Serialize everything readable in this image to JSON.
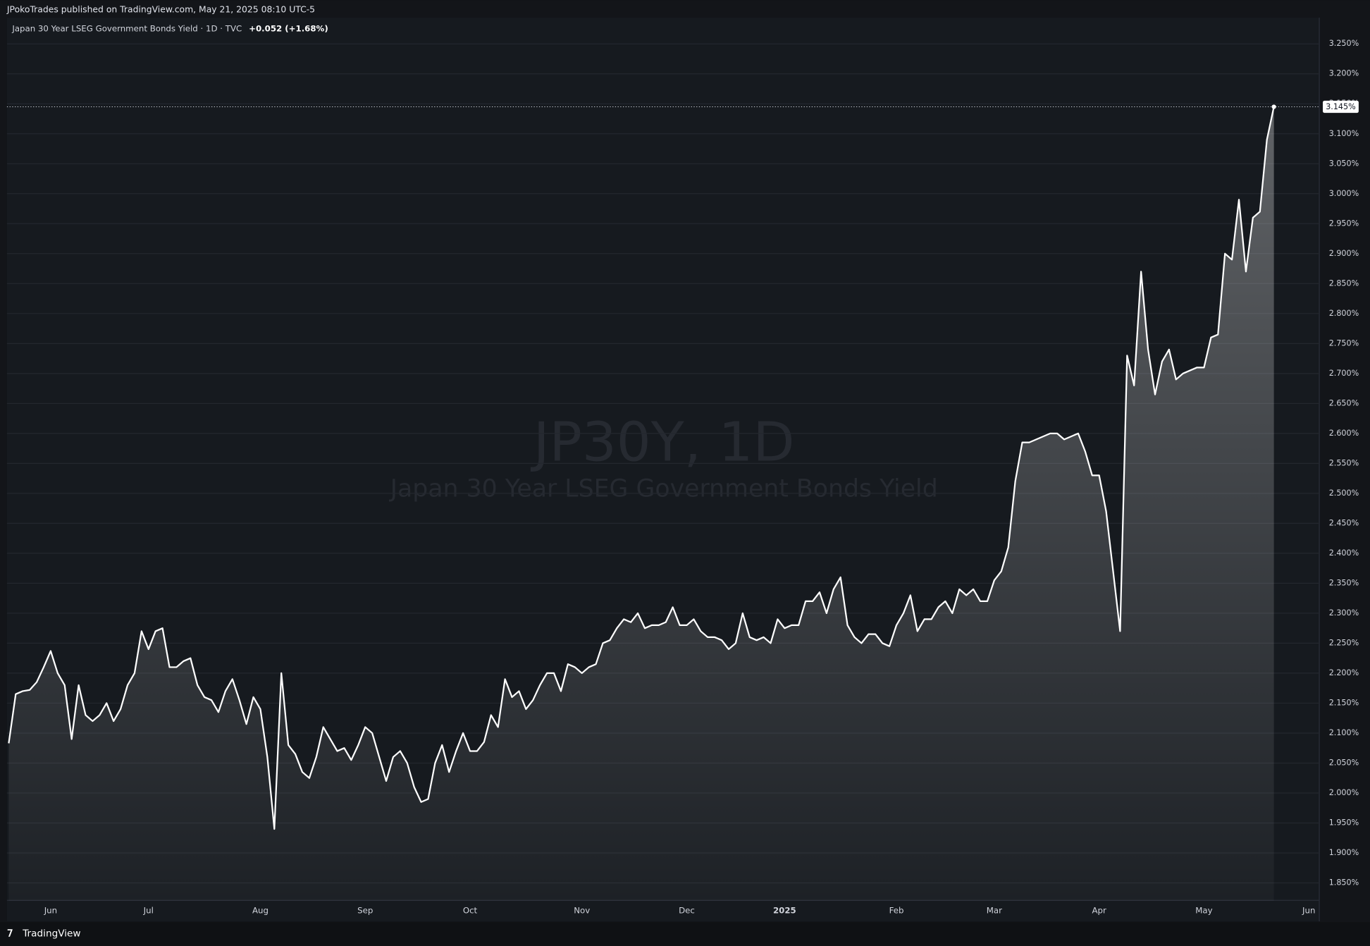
{
  "header": "JPokoTrades published on TradingView.com, May 21, 2025 08:10 UTC-5",
  "footer": "TradingView",
  "chart_data": {
    "type": "area",
    "legend_title": "Japan 30 Year LSEG Government Bonds Yield · 1D · TVC",
    "change": "+0.052 (+1.68%)",
    "watermark_symbol": "JP30Y, 1D",
    "watermark_name": "Japan 30 Year LSEG Government Bonds Yield",
    "last_price_label": {
      "value": 3.145,
      "label": "3.145%"
    },
    "grid": true,
    "ylim": [
      1.82,
      3.294
    ],
    "yticks": [
      {
        "value": 1.85,
        "label": "1.850%"
      },
      {
        "value": 1.9,
        "label": "1.900%"
      },
      {
        "value": 1.95,
        "label": "1.950%"
      },
      {
        "value": 2.0,
        "label": "2.000%"
      },
      {
        "value": 2.05,
        "label": "2.050%"
      },
      {
        "value": 2.1,
        "label": "2.100%"
      },
      {
        "value": 2.15,
        "label": "2.150%"
      },
      {
        "value": 2.2,
        "label": "2.200%"
      },
      {
        "value": 2.25,
        "label": "2.250%"
      },
      {
        "value": 2.3,
        "label": "2.300%"
      },
      {
        "value": 2.35,
        "label": "2.350%"
      },
      {
        "value": 2.4,
        "label": "2.400%"
      },
      {
        "value": 2.45,
        "label": "2.450%"
      },
      {
        "value": 2.5,
        "label": "2.500%"
      },
      {
        "value": 2.55,
        "label": "2.550%"
      },
      {
        "value": 2.6,
        "label": "2.600%"
      },
      {
        "value": 2.65,
        "label": "2.650%"
      },
      {
        "value": 2.7,
        "label": "2.700%"
      },
      {
        "value": 2.75,
        "label": "2.750%"
      },
      {
        "value": 2.8,
        "label": "2.800%"
      },
      {
        "value": 2.85,
        "label": "2.850%"
      },
      {
        "value": 2.9,
        "label": "2.900%"
      },
      {
        "value": 2.95,
        "label": "2.950%"
      },
      {
        "value": 3.0,
        "label": "3.000%"
      },
      {
        "value": 3.05,
        "label": "3.050%"
      },
      {
        "value": 3.1,
        "label": "3.100%"
      },
      {
        "value": 3.15,
        "label": "3.150%"
      },
      {
        "value": 3.2,
        "label": "3.200%"
      },
      {
        "value": 3.25,
        "label": "3.250%"
      }
    ],
    "categories": [
      null,
      null,
      null,
      null,
      null,
      null,
      "Jun",
      null,
      null,
      null,
      null,
      null,
      null,
      null,
      null,
      null,
      null,
      null,
      null,
      null,
      "Jul",
      null,
      null,
      null,
      null,
      null,
      null,
      null,
      null,
      null,
      null,
      null,
      null,
      null,
      null,
      null,
      "Aug",
      null,
      null,
      null,
      null,
      null,
      null,
      null,
      null,
      null,
      null,
      null,
      null,
      null,
      null,
      "Sep",
      null,
      null,
      null,
      null,
      null,
      null,
      null,
      null,
      null,
      null,
      null,
      null,
      null,
      null,
      "Oct",
      null,
      null,
      null,
      null,
      null,
      null,
      null,
      null,
      null,
      null,
      null,
      null,
      null,
      null,
      null,
      "Nov",
      null,
      null,
      null,
      null,
      null,
      null,
      null,
      null,
      null,
      null,
      null,
      null,
      null,
      null,
      "Dec",
      null,
      null,
      null,
      null,
      null,
      null,
      null,
      null,
      null,
      null,
      null,
      null,
      null,
      "2025",
      null,
      null,
      null,
      null,
      null,
      null,
      null,
      null,
      null,
      null,
      null,
      null,
      null,
      null,
      null,
      "Feb",
      null,
      null,
      null,
      null,
      null,
      null,
      null,
      null,
      null,
      null,
      null,
      null,
      null,
      "Mar",
      null,
      null,
      null,
      null,
      null,
      null,
      null,
      null,
      null,
      null,
      null,
      null,
      null,
      null,
      "Apr",
      null,
      null,
      null,
      null,
      null,
      null,
      null,
      null,
      null,
      null,
      null,
      null,
      null,
      null,
      "May",
      null,
      null,
      null,
      null,
      null,
      null,
      null,
      null,
      null,
      null,
      null,
      null,
      null,
      null,
      "Jun"
    ],
    "series": [
      {
        "name": "Japan 30 Year LSEG Government Bonds Yield",
        "color": "#ffffff",
        "values": [
          2.083,
          2.165,
          2.17,
          2.172,
          2.185,
          2.21,
          2.237,
          2.2,
          2.18,
          2.09,
          2.18,
          2.13,
          2.12,
          2.13,
          2.15,
          2.12,
          2.14,
          2.18,
          2.2,
          2.27,
          2.24,
          2.27,
          2.275,
          2.21,
          2.21,
          2.22,
          2.225,
          2.18,
          2.16,
          2.155,
          2.135,
          2.17,
          2.19,
          2.155,
          2.115,
          2.16,
          2.14,
          2.06,
          1.94,
          2.2,
          2.08,
          2.065,
          2.035,
          2.025,
          2.06,
          2.11,
          2.09,
          2.07,
          2.075,
          2.055,
          2.08,
          2.11,
          2.1,
          2.06,
          2.02,
          2.06,
          2.07,
          2.05,
          2.01,
          1.985,
          1.99,
          2.05,
          2.08,
          2.035,
          2.07,
          2.1,
          2.07,
          2.07,
          2.085,
          2.13,
          2.11,
          2.19,
          2.16,
          2.17,
          2.14,
          2.155,
          2.18,
          2.2,
          2.2,
          2.17,
          2.215,
          2.21,
          2.2,
          2.21,
          2.215,
          2.25,
          2.255,
          2.275,
          2.29,
          2.285,
          2.3,
          2.275,
          2.28,
          2.28,
          2.285,
          2.31,
          2.28,
          2.28,
          2.29,
          2.27,
          2.26,
          2.26,
          2.255,
          2.24,
          2.25,
          2.3,
          2.26,
          2.255,
          2.26,
          2.25,
          2.29,
          2.275,
          2.28,
          2.28,
          2.32,
          2.32,
          2.335,
          2.3,
          2.34,
          2.36,
          2.28,
          2.26,
          2.25,
          2.265,
          2.265,
          2.25,
          2.245,
          2.28,
          2.3,
          2.33,
          2.27,
          2.29,
          2.29,
          2.31,
          2.32,
          2.3,
          2.34,
          2.33,
          2.34,
          2.32,
          2.32,
          2.355,
          2.37,
          2.41,
          2.52,
          2.585,
          2.585,
          2.59,
          2.595,
          2.6,
          2.6,
          2.59,
          2.595,
          2.6,
          2.57,
          2.53,
          2.53,
          2.47,
          2.37,
          2.27,
          2.73,
          2.68,
          2.87,
          2.74,
          2.665,
          2.72,
          2.74,
          2.69,
          2.7,
          2.705,
          2.71,
          2.71,
          2.76,
          2.765,
          2.9,
          2.89,
          2.99,
          2.87,
          2.96,
          2.97,
          3.09,
          3.145,
          null,
          null,
          null,
          null,
          null
        ]
      }
    ]
  }
}
